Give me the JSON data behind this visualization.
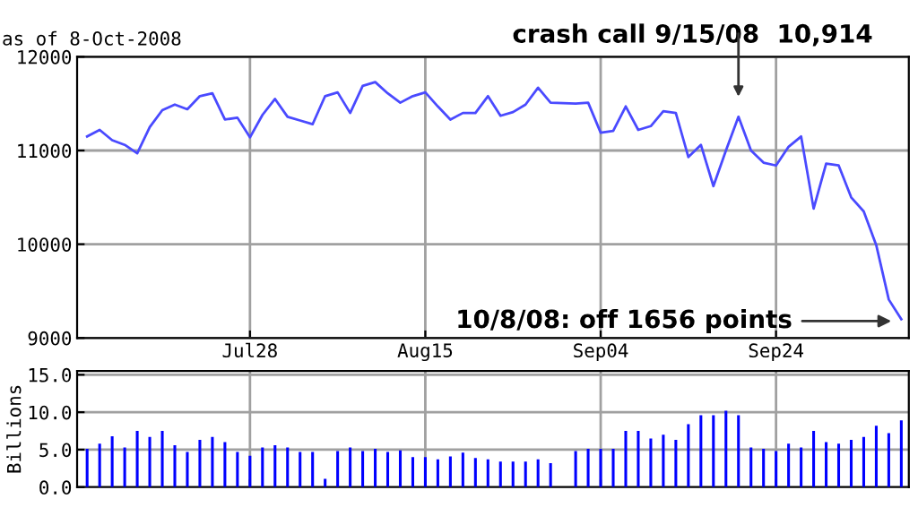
{
  "chart_data": [
    {
      "type": "line",
      "subtitle": "as of 8-Oct-2008",
      "categories": [
        null,
        null,
        null,
        null,
        null,
        null,
        null,
        null,
        null,
        null,
        null,
        null,
        null,
        "Jul28",
        null,
        null,
        null,
        null,
        null,
        null,
        null,
        null,
        null,
        null,
        null,
        null,
        null,
        "Aug15",
        null,
        null,
        null,
        null,
        null,
        null,
        null,
        null,
        null,
        null,
        null,
        null,
        null,
        "Sep04",
        null,
        null,
        null,
        null,
        null,
        null,
        null,
        null,
        null,
        null,
        null,
        null,
        null,
        "Sep24",
        null,
        null,
        null,
        null,
        null,
        null,
        null,
        null,
        null,
        null
      ],
      "series": [
        {
          "color": "#4a4aff",
          "values": [
            11150,
            11220,
            11110,
            11060,
            10970,
            11250,
            11430,
            11490,
            11440,
            11580,
            11610,
            11330,
            11350,
            11140,
            11380,
            11550,
            11360,
            11320,
            11280,
            11580,
            11620,
            11400,
            11690,
            11730,
            11610,
            11510,
            11580,
            11620,
            11470,
            11330,
            11400,
            11400,
            11580,
            11370,
            11410,
            11490,
            11670,
            11510,
            null,
            11500,
            11510,
            11190,
            11210,
            11470,
            11220,
            11260,
            11420,
            11400,
            10930,
            11060,
            10620,
            11000,
            11360,
            11000,
            10870,
            10840,
            11040,
            11150,
            10380,
            10860,
            10840,
            10500,
            10350,
            9990,
            9410,
            9200
          ]
        }
      ],
      "ylim": [
        9000,
        12000
      ],
      "yticks": [
        9000,
        10000,
        11000,
        12000
      ],
      "grid": true,
      "annotations": [
        "crash call 9/15/08  10,914",
        "10/8/08: off 1656 points"
      ]
    },
    {
      "type": "bar",
      "ylabel": "Billions",
      "categories": [
        null,
        null,
        null,
        null,
        null,
        null,
        null,
        null,
        null,
        null,
        null,
        null,
        null,
        null,
        null,
        null,
        null,
        null,
        null,
        null,
        null,
        null,
        null,
        null,
        null,
        null,
        null,
        null,
        null,
        null,
        null,
        null,
        null,
        null,
        null,
        null,
        null,
        null,
        null,
        null,
        null,
        null,
        null,
        null,
        null,
        null,
        null,
        null,
        null,
        null,
        null,
        null,
        null,
        null,
        null,
        null,
        null,
        null,
        null,
        null,
        null,
        null,
        null,
        null,
        null,
        null
      ],
      "series": [
        {
          "color": "#0000ff",
          "values": [
            5.1,
            5.8,
            6.8,
            5.3,
            7.5,
            6.7,
            7.5,
            5.6,
            4.7,
            6.3,
            6.7,
            6.0,
            4.7,
            4.2,
            5.3,
            5.6,
            5.3,
            4.7,
            4.7,
            1.1,
            4.8,
            5.3,
            4.8,
            5.1,
            4.7,
            4.9,
            4.0,
            4.0,
            3.7,
            4.1,
            4.6,
            3.9,
            3.7,
            3.4,
            3.4,
            3.4,
            3.7,
            3.2,
            null,
            4.8,
            5.1,
            5.1,
            5.1,
            7.5,
            7.5,
            6.5,
            7.0,
            6.3,
            8.4,
            9.6,
            9.6,
            10.2,
            9.6,
            5.3,
            5.1,
            4.8,
            5.8,
            5.3,
            7.5,
            6.0,
            5.8,
            6.3,
            6.7,
            8.2,
            7.2,
            8.9
          ]
        }
      ],
      "ylim": [
        0,
        15.5
      ],
      "yticks": [
        {
          "value": 0,
          "label": "0.0"
        },
        {
          "value": 5,
          "label": "5.0"
        },
        {
          "value": 10,
          "label": "10.0"
        },
        {
          "value": 15,
          "label": "15.0"
        }
      ],
      "grid": true,
      "tick_labels": "y"
    }
  ]
}
